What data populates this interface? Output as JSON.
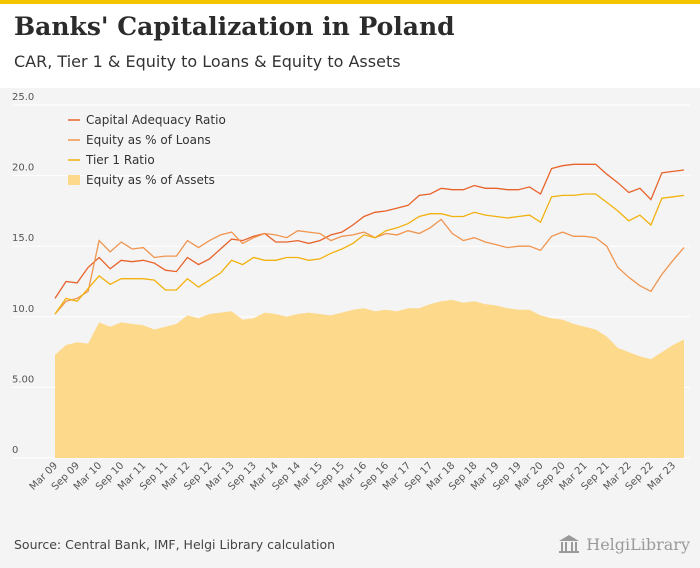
{
  "header": {
    "title": "Banks' Capitalization in Poland",
    "subtitle": "CAR, Tier 1 & Equity to Loans & Equity to Assets"
  },
  "footer": {
    "source": "Source: Central Bank, IMF, Helgi Library calculation",
    "brand": "HelgiLibrary"
  },
  "colors": {
    "car": "#e8632b",
    "equity_loans": "#f0954f",
    "tier1": "#f2b10d",
    "equity_assets": "#fdd98c"
  },
  "chart_data": {
    "type": "line",
    "ylim": [
      0,
      25
    ],
    "yticks": [
      "0",
      "5.00",
      "10.0",
      "15.0",
      "20.0",
      "25.0"
    ],
    "ytick_values": [
      0,
      5,
      10,
      15,
      20,
      25
    ],
    "grid": true,
    "legend": "top-left",
    "x": [
      "Mar 09",
      "Jun 09",
      "Sep 09",
      "Dec 09",
      "Mar 10",
      "Jun 10",
      "Sep 10",
      "Dec 10",
      "Mar 11",
      "Jun 11",
      "Sep 11",
      "Dec 11",
      "Mar 12",
      "Jun 12",
      "Sep 12",
      "Dec 12",
      "Mar 13",
      "Jun 13",
      "Sep 13",
      "Dec 13",
      "Mar 14",
      "Jun 14",
      "Sep 14",
      "Dec 14",
      "Mar 15",
      "Jun 15",
      "Sep 15",
      "Dec 15",
      "Mar 16",
      "Jun 16",
      "Sep 16",
      "Dec 16",
      "Mar 17",
      "Jun 17",
      "Sep 17",
      "Dec 17",
      "Mar 18",
      "Jun 18",
      "Sep 18",
      "Dec 18",
      "Mar 19",
      "Jun 19",
      "Sep 19",
      "Dec 19",
      "Mar 20",
      "Jun 20",
      "Sep 20",
      "Dec 20",
      "Mar 21",
      "Jun 21",
      "Sep 21",
      "Dec 21",
      "Mar 22",
      "Jun 22",
      "Sep 22",
      "Dec 22",
      "Mar 23",
      "Jun 23"
    ],
    "x_tick_labels": [
      "Mar 09",
      "Sep 09",
      "Mar 10",
      "Sep 10",
      "Mar 11",
      "Sep 11",
      "Mar 12",
      "Sep 12",
      "Mar 13",
      "Sep 13",
      "Mar 14",
      "Sep 14",
      "Mar 15",
      "Sep 15",
      "Mar 16",
      "Sep 16",
      "Mar 17",
      "Sep 17",
      "Mar 18",
      "Sep 18",
      "Mar 19",
      "Sep 19",
      "Mar 20",
      "Sep 20",
      "Mar 21",
      "Sep 21",
      "Mar 22",
      "Sep 22",
      "Mar 23"
    ],
    "series": [
      {
        "name": "Capital Adequacy Ratio",
        "kind": "line",
        "color": "#e8632b",
        "values": [
          11.3,
          12.5,
          12.4,
          13.5,
          14.2,
          13.4,
          14.0,
          13.9,
          14.0,
          13.8,
          13.3,
          13.2,
          14.2,
          13.7,
          14.1,
          14.8,
          15.5,
          15.4,
          15.7,
          15.9,
          15.3,
          15.3,
          15.4,
          15.2,
          15.4,
          15.8,
          16.0,
          16.5,
          17.1,
          17.4,
          17.5,
          17.7,
          17.9,
          18.6,
          18.7,
          19.1,
          19.0,
          19.0,
          19.3,
          19.1,
          19.1,
          19.0,
          19.0,
          19.2,
          18.7,
          20.5,
          20.7,
          20.8,
          20.8,
          20.8,
          20.1,
          19.5,
          18.8,
          19.1,
          18.3,
          20.2,
          20.3,
          20.4
        ]
      },
      {
        "name": "Equity as % of Loans",
        "kind": "line",
        "color": "#f0954f",
        "values": [
          10.2,
          11.1,
          11.3,
          11.8,
          15.4,
          14.6,
          15.3,
          14.8,
          14.9,
          14.2,
          14.3,
          14.3,
          15.4,
          14.9,
          15.4,
          15.8,
          16.0,
          15.2,
          15.6,
          15.9,
          15.8,
          15.6,
          16.1,
          16.0,
          15.9,
          15.4,
          15.7,
          15.8,
          16.0,
          15.6,
          15.9,
          15.8,
          16.1,
          15.9,
          16.3,
          16.9,
          15.9,
          15.4,
          15.6,
          15.3,
          15.1,
          14.9,
          15.0,
          15.0,
          14.7,
          15.7,
          16.0,
          15.7,
          15.7,
          15.6,
          15.0,
          13.5,
          12.8,
          12.2,
          11.8,
          13.0,
          14.0,
          14.9
        ]
      },
      {
        "name": "Tier 1 Ratio",
        "kind": "line",
        "color": "#f2b10d",
        "values": [
          10.2,
          11.3,
          11.1,
          12.0,
          12.9,
          12.3,
          12.7,
          12.7,
          12.7,
          12.6,
          11.9,
          11.9,
          12.7,
          12.1,
          12.6,
          13.1,
          14.0,
          13.7,
          14.2,
          14.0,
          14.0,
          14.2,
          14.2,
          14.0,
          14.1,
          14.5,
          14.8,
          15.2,
          15.8,
          15.6,
          16.1,
          16.3,
          16.6,
          17.1,
          17.3,
          17.3,
          17.1,
          17.1,
          17.4,
          17.2,
          17.1,
          17.0,
          17.1,
          17.2,
          16.7,
          18.5,
          18.6,
          18.6,
          18.7,
          18.7,
          18.1,
          17.5,
          16.8,
          17.2,
          16.5,
          18.4,
          18.5,
          18.6
        ]
      },
      {
        "name": "Equity as % of Assets",
        "kind": "area",
        "color": "#fdd98c",
        "values": [
          7.3,
          8.0,
          8.2,
          8.1,
          9.6,
          9.3,
          9.6,
          9.5,
          9.4,
          9.1,
          9.3,
          9.5,
          10.1,
          9.9,
          10.2,
          10.3,
          10.4,
          9.8,
          9.9,
          10.3,
          10.2,
          10.0,
          10.2,
          10.3,
          10.2,
          10.1,
          10.3,
          10.5,
          10.6,
          10.4,
          10.5,
          10.4,
          10.6,
          10.6,
          10.9,
          11.1,
          11.2,
          11.0,
          11.1,
          10.9,
          10.8,
          10.6,
          10.5,
          10.5,
          10.1,
          9.9,
          9.8,
          9.5,
          9.3,
          9.1,
          8.6,
          7.8,
          7.5,
          7.2,
          7.0,
          7.5,
          8.0,
          8.4
        ]
      }
    ]
  }
}
